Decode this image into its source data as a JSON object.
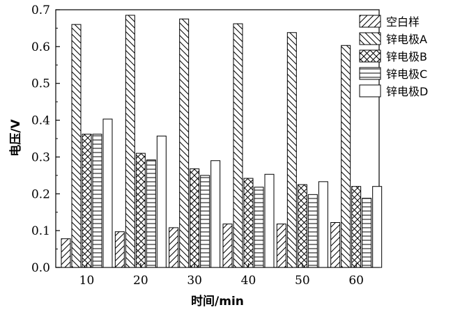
{
  "chart_data": {
    "type": "bar",
    "xlabel": "时间/min",
    "ylabel": "电压/V",
    "categories": [
      "10",
      "20",
      "30",
      "40",
      "50",
      "60"
    ],
    "ylim": [
      0,
      0.7
    ],
    "yticks": [
      "0.0",
      "0.1",
      "0.2",
      "0.3",
      "0.4",
      "0.5",
      "0.6",
      "0.7"
    ],
    "legend_position": "top-right",
    "series": [
      {
        "name": "空白样",
        "pattern": "diag-right",
        "values": [
          0.078,
          0.097,
          0.108,
          0.118,
          0.118,
          0.122
        ]
      },
      {
        "name": "锌电极A",
        "pattern": "diag-left",
        "values": [
          0.66,
          0.685,
          0.675,
          0.662,
          0.638,
          0.603
        ]
      },
      {
        "name": "锌电极B",
        "pattern": "crosshatch",
        "values": [
          0.362,
          0.31,
          0.268,
          0.242,
          0.225,
          0.22
        ]
      },
      {
        "name": "锌电极C",
        "pattern": "horizontal",
        "values": [
          0.362,
          0.292,
          0.25,
          0.218,
          0.198,
          0.188
        ]
      },
      {
        "name": "锌电极D",
        "pattern": "solid-white",
        "values": [
          0.403,
          0.357,
          0.29,
          0.253,
          0.233,
          0.22
        ]
      }
    ]
  }
}
